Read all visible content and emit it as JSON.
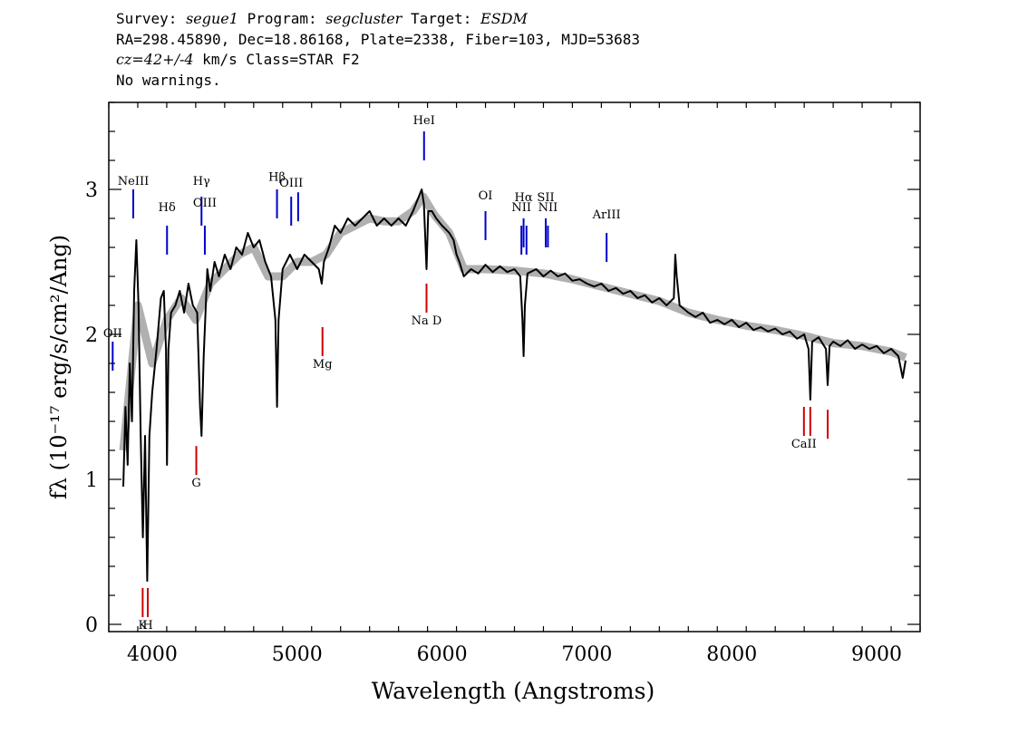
{
  "header": {
    "survey_label": "Survey: ",
    "survey": "segue1",
    "program_label": " Program: ",
    "program": "segcluster",
    "target_label": " Target: ",
    "target": "ESDM",
    "coords": "RA=298.45890, Dec=18.86168, Plate=2338, Fiber=103, MJD=53683",
    "cz_value": "cz=42+/-4",
    "cz_rest": " km/s Class=STAR F2",
    "warnings": "No warnings."
  },
  "chart_data": {
    "type": "line",
    "xlabel": "Wavelength (Angstroms)",
    "ylabel": "fλ (10⁻¹⁷ erg/s/cm²/Ang)",
    "xlim": [
      3700,
      9300
    ],
    "ylim": [
      -0.05,
      3.6
    ],
    "x_ticks": [
      4000,
      5000,
      6000,
      7000,
      8000,
      9000
    ],
    "y_ticks": [
      0,
      1,
      2,
      3
    ],
    "x_minor_step": 200,
    "y_minor_step": 0.2,
    "grid": false,
    "series": [
      {
        "role": "flux",
        "color": "#000000",
        "points": [
          [
            3800,
            0.95
          ],
          [
            3815,
            1.5
          ],
          [
            3830,
            1.1
          ],
          [
            3845,
            1.8
          ],
          [
            3860,
            1.4
          ],
          [
            3875,
            2.3
          ],
          [
            3890,
            2.65
          ],
          [
            3905,
            2.2
          ],
          [
            3920,
            1.3
          ],
          [
            3935,
            0.6
          ],
          [
            3950,
            1.3
          ],
          [
            3965,
            0.3
          ],
          [
            3980,
            1.3
          ],
          [
            4000,
            1.6
          ],
          [
            4030,
            1.9
          ],
          [
            4060,
            2.25
          ],
          [
            4080,
            2.3
          ],
          [
            4095,
            1.9
          ],
          [
            4102,
            1.1
          ],
          [
            4112,
            1.9
          ],
          [
            4130,
            2.15
          ],
          [
            4160,
            2.2
          ],
          [
            4190,
            2.3
          ],
          [
            4220,
            2.15
          ],
          [
            4250,
            2.35
          ],
          [
            4280,
            2.2
          ],
          [
            4310,
            2.15
          ],
          [
            4330,
            1.5
          ],
          [
            4340,
            1.3
          ],
          [
            4355,
            1.85
          ],
          [
            4380,
            2.45
          ],
          [
            4400,
            2.3
          ],
          [
            4430,
            2.5
          ],
          [
            4460,
            2.4
          ],
          [
            4500,
            2.55
          ],
          [
            4540,
            2.45
          ],
          [
            4580,
            2.6
          ],
          [
            4620,
            2.55
          ],
          [
            4660,
            2.7
          ],
          [
            4700,
            2.6
          ],
          [
            4740,
            2.65
          ],
          [
            4780,
            2.5
          ],
          [
            4820,
            2.4
          ],
          [
            4850,
            2.1
          ],
          [
            4861,
            1.5
          ],
          [
            4872,
            2.1
          ],
          [
            4900,
            2.45
          ],
          [
            4950,
            2.55
          ],
          [
            5000,
            2.45
          ],
          [
            5050,
            2.55
          ],
          [
            5100,
            2.5
          ],
          [
            5150,
            2.45
          ],
          [
            5170,
            2.35
          ],
          [
            5185,
            2.5
          ],
          [
            5220,
            2.6
          ],
          [
            5260,
            2.75
          ],
          [
            5300,
            2.7
          ],
          [
            5350,
            2.8
          ],
          [
            5400,
            2.75
          ],
          [
            5450,
            2.8
          ],
          [
            5500,
            2.85
          ],
          [
            5550,
            2.75
          ],
          [
            5600,
            2.8
          ],
          [
            5650,
            2.75
          ],
          [
            5700,
            2.8
          ],
          [
            5750,
            2.75
          ],
          [
            5800,
            2.85
          ],
          [
            5840,
            2.95
          ],
          [
            5860,
            3.0
          ],
          [
            5875,
            2.9
          ],
          [
            5893,
            2.45
          ],
          [
            5905,
            2.85
          ],
          [
            5930,
            2.85
          ],
          [
            5960,
            2.8
          ],
          [
            6000,
            2.75
          ],
          [
            6050,
            2.7
          ],
          [
            6080,
            2.65
          ],
          [
            6100,
            2.55
          ],
          [
            6120,
            2.5
          ],
          [
            6150,
            2.4
          ],
          [
            6200,
            2.45
          ],
          [
            6250,
            2.42
          ],
          [
            6300,
            2.48
          ],
          [
            6350,
            2.43
          ],
          [
            6400,
            2.47
          ],
          [
            6450,
            2.43
          ],
          [
            6500,
            2.45
          ],
          [
            6540,
            2.4
          ],
          [
            6555,
            2.1
          ],
          [
            6563,
            1.85
          ],
          [
            6572,
            2.2
          ],
          [
            6590,
            2.42
          ],
          [
            6650,
            2.45
          ],
          [
            6700,
            2.4
          ],
          [
            6750,
            2.44
          ],
          [
            6800,
            2.4
          ],
          [
            6850,
            2.42
          ],
          [
            6900,
            2.37
          ],
          [
            6950,
            2.38
          ],
          [
            7000,
            2.35
          ],
          [
            7050,
            2.33
          ],
          [
            7100,
            2.35
          ],
          [
            7150,
            2.3
          ],
          [
            7200,
            2.32
          ],
          [
            7250,
            2.28
          ],
          [
            7300,
            2.3
          ],
          [
            7350,
            2.25
          ],
          [
            7400,
            2.27
          ],
          [
            7450,
            2.22
          ],
          [
            7500,
            2.25
          ],
          [
            7550,
            2.2
          ],
          [
            7600,
            2.25
          ],
          [
            7610,
            2.55
          ],
          [
            7620,
            2.4
          ],
          [
            7640,
            2.2
          ],
          [
            7700,
            2.15
          ],
          [
            7750,
            2.12
          ],
          [
            7800,
            2.15
          ],
          [
            7850,
            2.08
          ],
          [
            7900,
            2.1
          ],
          [
            7950,
            2.07
          ],
          [
            8000,
            2.1
          ],
          [
            8050,
            2.05
          ],
          [
            8100,
            2.08
          ],
          [
            8150,
            2.03
          ],
          [
            8200,
            2.05
          ],
          [
            8250,
            2.02
          ],
          [
            8300,
            2.04
          ],
          [
            8350,
            2.0
          ],
          [
            8400,
            2.02
          ],
          [
            8450,
            1.97
          ],
          [
            8500,
            2.0
          ],
          [
            8530,
            1.9
          ],
          [
            8542,
            1.55
          ],
          [
            8555,
            1.95
          ],
          [
            8600,
            1.98
          ],
          [
            8650,
            1.9
          ],
          [
            8662,
            1.65
          ],
          [
            8675,
            1.92
          ],
          [
            8700,
            1.95
          ],
          [
            8750,
            1.92
          ],
          [
            8800,
            1.96
          ],
          [
            8850,
            1.9
          ],
          [
            8900,
            1.93
          ],
          [
            8950,
            1.9
          ],
          [
            9000,
            1.92
          ],
          [
            9050,
            1.87
          ],
          [
            9100,
            1.9
          ],
          [
            9150,
            1.85
          ],
          [
            9180,
            1.7
          ],
          [
            9200,
            1.82
          ]
        ]
      },
      {
        "role": "model",
        "color": "#b0b0b0",
        "points": [
          [
            3800,
            1.2
          ],
          [
            3900,
            2.2
          ],
          [
            4000,
            1.8
          ],
          [
            4100,
            2.1
          ],
          [
            4200,
            2.25
          ],
          [
            4300,
            2.1
          ],
          [
            4400,
            2.35
          ],
          [
            4500,
            2.45
          ],
          [
            4600,
            2.55
          ],
          [
            4700,
            2.6
          ],
          [
            4800,
            2.4
          ],
          [
            4900,
            2.4
          ],
          [
            5000,
            2.5
          ],
          [
            5100,
            2.5
          ],
          [
            5200,
            2.55
          ],
          [
            5300,
            2.7
          ],
          [
            5400,
            2.75
          ],
          [
            5500,
            2.8
          ],
          [
            5600,
            2.78
          ],
          [
            5700,
            2.78
          ],
          [
            5800,
            2.85
          ],
          [
            5870,
            2.95
          ],
          [
            5950,
            2.82
          ],
          [
            6050,
            2.7
          ],
          [
            6150,
            2.45
          ],
          [
            6300,
            2.45
          ],
          [
            6500,
            2.44
          ],
          [
            6700,
            2.42
          ],
          [
            6900,
            2.38
          ],
          [
            7100,
            2.33
          ],
          [
            7300,
            2.28
          ],
          [
            7500,
            2.23
          ],
          [
            7700,
            2.15
          ],
          [
            7900,
            2.1
          ],
          [
            8100,
            2.06
          ],
          [
            8300,
            2.03
          ],
          [
            8500,
            1.99
          ],
          [
            8700,
            1.94
          ],
          [
            8900,
            1.92
          ],
          [
            9100,
            1.88
          ],
          [
            9200,
            1.84
          ]
        ]
      }
    ],
    "lines": [
      {
        "label": "OII",
        "wavelength": 3727,
        "y_top": 1.95,
        "y_bottom": 1.75,
        "label_y": 1.98,
        "color": "#0000cc"
      },
      {
        "label": "NeIII",
        "wavelength": 3869,
        "y_top": 3.0,
        "y_bottom": 2.8,
        "label_y": 3.03,
        "color": "#0000cc"
      },
      {
        "label": "Hδ",
        "wavelength": 4102,
        "y_top": 2.75,
        "y_bottom": 2.55,
        "label_y": 2.85,
        "color": "#0000cc"
      },
      {
        "label": "Hγ",
        "wavelength": 4340,
        "y_top": 2.95,
        "y_bottom": 2.75,
        "label_y": 3.03,
        "color": "#0000cc"
      },
      {
        "label": "OIII",
        "wavelength": 4363,
        "y_top": 2.75,
        "y_bottom": 2.55,
        "label_y": 2.88,
        "color": "#0000cc"
      },
      {
        "label": "Hβ",
        "wavelength": 4861,
        "y_top": 3.0,
        "y_bottom": 2.8,
        "label_y": 3.06,
        "color": "#0000cc"
      },
      {
        "label": "OIII",
        "wavelength": 4959,
        "y_top": 2.95,
        "y_bottom": 2.75,
        "label_y": 3.02,
        "color": "#0000cc"
      },
      {
        "label": "",
        "wavelength": 5007,
        "y_top": 2.98,
        "y_bottom": 2.78,
        "label_y": 0,
        "color": "#0000cc"
      },
      {
        "label": "HeI",
        "wavelength": 5876,
        "y_top": 3.4,
        "y_bottom": 3.2,
        "label_y": 3.45,
        "color": "#0000cc"
      },
      {
        "label": "OI",
        "wavelength": 6300,
        "y_top": 2.85,
        "y_bottom": 2.65,
        "label_y": 2.93,
        "color": "#0000cc"
      },
      {
        "label": "NII",
        "wavelength": 6548,
        "y_top": 2.75,
        "y_bottom": 2.55,
        "label_y": 2.85,
        "color": "#0000cc"
      },
      {
        "label": "Hα",
        "wavelength": 6563,
        "y_top": 2.8,
        "y_bottom": 2.6,
        "label_y": 2.92,
        "color": "#0000cc"
      },
      {
        "label": "",
        "wavelength": 6583,
        "y_top": 2.75,
        "y_bottom": 2.55,
        "label_y": 0,
        "color": "#0000cc"
      },
      {
        "label": "SII",
        "wavelength": 6716,
        "y_top": 2.8,
        "y_bottom": 2.6,
        "label_y": 2.92,
        "color": "#0000cc"
      },
      {
        "label": "NII",
        "wavelength": 6731,
        "y_top": 2.75,
        "y_bottom": 2.6,
        "label_y": 2.85,
        "color": "#0000cc"
      },
      {
        "label": "ArIII",
        "wavelength": 7136,
        "y_top": 2.7,
        "y_bottom": 2.5,
        "label_y": 2.8,
        "color": "#0000cc"
      },
      {
        "label": "K",
        "wavelength": 3934,
        "y_top": 0.25,
        "y_bottom": 0.05,
        "label_y": -0.03,
        "color": "#cc0000"
      },
      {
        "label": "H",
        "wavelength": 3969,
        "y_top": 0.25,
        "y_bottom": 0.05,
        "label_y": -0.03,
        "color": "#cc0000"
      },
      {
        "label": "G",
        "wavelength": 4304,
        "y_top": 1.23,
        "y_bottom": 1.03,
        "label_y": 0.95,
        "color": "#cc0000"
      },
      {
        "label": "Mg",
        "wavelength": 5175,
        "y_top": 2.05,
        "y_bottom": 1.85,
        "label_y": 1.77,
        "color": "#cc0000"
      },
      {
        "label": "Na D",
        "wavelength": 5893,
        "y_top": 2.35,
        "y_bottom": 2.15,
        "label_y": 2.07,
        "color": "#cc0000"
      },
      {
        "label": "CaII",
        "wavelength": 8498,
        "y_top": 1.5,
        "y_bottom": 1.3,
        "label_y": 1.22,
        "color": "#cc0000"
      },
      {
        "label": "",
        "wavelength": 8542,
        "y_top": 1.5,
        "y_bottom": 1.3,
        "label_y": 0,
        "color": "#cc0000"
      },
      {
        "label": "",
        "wavelength": 8662,
        "y_top": 1.48,
        "y_bottom": 1.28,
        "label_y": 0,
        "color": "#cc0000"
      }
    ]
  }
}
